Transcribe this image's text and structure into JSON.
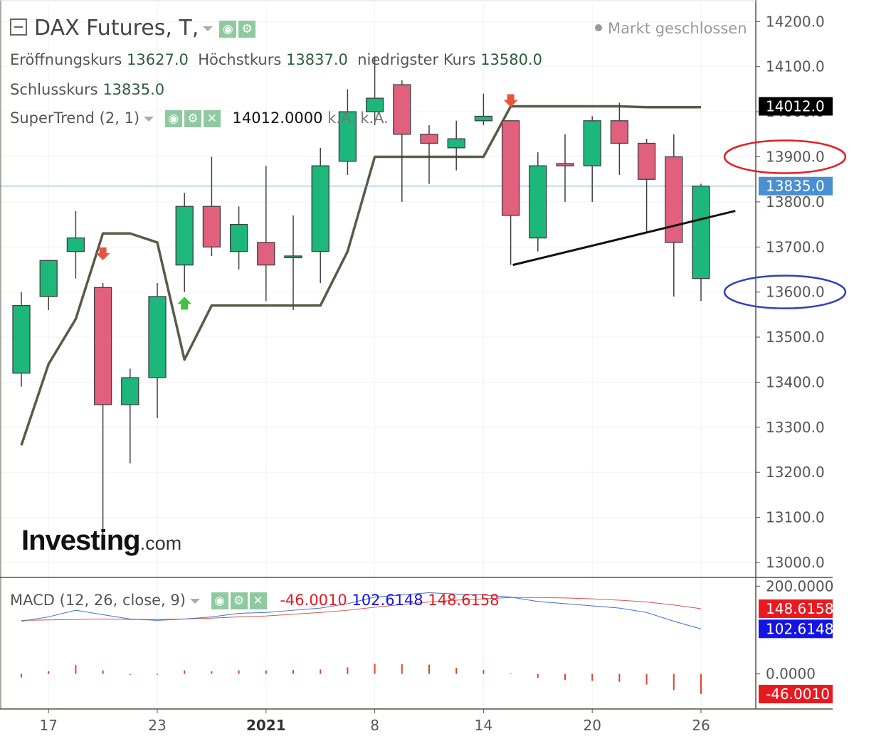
{
  "header": {
    "instrument": "DAX Futures, T,",
    "status": "Markt geschlossen",
    "ohlc": [
      {
        "label": "Eröffnungskurs",
        "value": "13627.0"
      },
      {
        "label": "Höchstkurs",
        "value": "13837.0"
      },
      {
        "label": "niedrigster Kurs",
        "value": "13580.0"
      }
    ],
    "close": {
      "label": "Schlusskurs",
      "value": "13835.0"
    },
    "indicator": {
      "name": "SuperTrend (2, 1)",
      "value": "14012.0000",
      "extra1": "k.A.",
      "extra2": "k.A."
    },
    "macd": {
      "name": "MACD (12, 26, close, 9)",
      "hist": "-46.0010",
      "macd": "102.6148",
      "signal": "148.6158"
    }
  },
  "logo": {
    "main": "Investing",
    "suffix": ".com"
  },
  "colors": {
    "up": "#1db77b",
    "down": "#e0607e",
    "outline": "#3f3f3f",
    "supertrend": "#5a5a47",
    "macd_line": "#3d6fd6",
    "signal_line": "#d9534f",
    "hist": "#e0442e"
  },
  "chart_data": [
    {
      "type": "candlestick",
      "y_ticks": [
        "14200.0",
        "14100.0",
        "14000.0",
        "13900.0",
        "13800.0",
        "13700.0",
        "13600.0",
        "13500.0",
        "13400.0",
        "13300.0",
        "13200.0",
        "13100.0",
        "13000.0"
      ],
      "ylim": [
        12970,
        14240
      ],
      "x_ticks": [
        {
          "index": 1,
          "label": "17"
        },
        {
          "index": 5,
          "label": "23"
        },
        {
          "index": 9,
          "label": "2021"
        },
        {
          "index": 13,
          "label": "8"
        },
        {
          "index": 17,
          "label": "14"
        },
        {
          "index": 21,
          "label": "20"
        },
        {
          "index": 25,
          "label": "26"
        }
      ],
      "candles": [
        {
          "open": 13420,
          "high": 13600,
          "low": 13390,
          "close": 13570
        },
        {
          "open": 13590,
          "high": 13660,
          "low": 13560,
          "close": 13670
        },
        {
          "open": 13690,
          "high": 13780,
          "low": 13630,
          "close": 13720
        },
        {
          "open": 13610,
          "high": 13620,
          "low": 13060,
          "close": 13350
        },
        {
          "open": 13350,
          "high": 13430,
          "low": 13220,
          "close": 13410
        },
        {
          "open": 13410,
          "high": 13620,
          "low": 13320,
          "close": 13590
        },
        {
          "open": 13660,
          "high": 13820,
          "low": 13600,
          "close": 13790
        },
        {
          "open": 13790,
          "high": 13900,
          "low": 13680,
          "close": 13700
        },
        {
          "open": 13690,
          "high": 13790,
          "low": 13650,
          "close": 13750
        },
        {
          "open": 13710,
          "high": 13880,
          "low": 13580,
          "close": 13660
        },
        {
          "open": 13680,
          "high": 13770,
          "low": 13560,
          "close": 13680
        },
        {
          "open": 13690,
          "high": 13920,
          "low": 13620,
          "close": 13880
        },
        {
          "open": 13890,
          "high": 14050,
          "low": 13860,
          "close": 14000
        },
        {
          "open": 14000,
          "high": 14120,
          "low": 13970,
          "close": 14030
        },
        {
          "open": 14060,
          "high": 14070,
          "low": 13800,
          "close": 13950
        },
        {
          "open": 13950,
          "high": 13970,
          "low": 13840,
          "close": 13930
        },
        {
          "open": 13920,
          "high": 13980,
          "low": 13870,
          "close": 13940
        },
        {
          "open": 13980,
          "high": 14040,
          "low": 13970,
          "close": 13990
        },
        {
          "open": 13980,
          "high": 13980,
          "low": 13660,
          "close": 13770
        },
        {
          "open": 13720,
          "high": 13910,
          "low": 13690,
          "close": 13880
        },
        {
          "open": 13885,
          "high": 13950,
          "low": 13800,
          "close": 13880
        },
        {
          "open": 13880,
          "high": 13990,
          "low": 13800,
          "close": 13980
        },
        {
          "open": 13980,
          "high": 14020,
          "low": 13860,
          "close": 13930
        },
        {
          "open": 13930,
          "high": 13940,
          "low": 13730,
          "close": 13850
        },
        {
          "open": 13900,
          "high": 13950,
          "low": 13590,
          "close": 13710
        },
        {
          "open": 13630,
          "high": 13840,
          "low": 13580,
          "close": 13835
        }
      ],
      "supertrend": [
        13260,
        13440,
        13540,
        13730,
        13730,
        13710,
        13450,
        13570,
        13570,
        13570,
        13570,
        13570,
        13690,
        13900,
        13900,
        13900,
        13900,
        13900,
        14012,
        14012,
        14012,
        14012,
        14012,
        14010,
        14010,
        14010
      ],
      "signals": [
        {
          "index": 3,
          "type": "sell",
          "price": 13680
        },
        {
          "index": 6,
          "type": "buy",
          "price": 13580
        },
        {
          "index": 18,
          "type": "sell",
          "price": 14020
        }
      ],
      "trendline": {
        "start": {
          "index": 18,
          "price": 13660
        },
        "end": {
          "index": 26,
          "price": 13780
        }
      },
      "last_price": {
        "label": "13835.0",
        "value": 13835
      },
      "st_price": {
        "label": "14012.0",
        "value": 14012
      },
      "highlights": [
        {
          "price": 13900,
          "color": "#e02020"
        },
        {
          "price": 13600,
          "color": "#3040c0"
        }
      ]
    },
    {
      "type": "line",
      "name": "MACD (12, 26, close, 9)",
      "y_ticks": [
        {
          "label": "200.0000",
          "value": 200
        },
        {
          "label": "0.0000",
          "value": 0
        }
      ],
      "ylim": [
        -80,
        215
      ],
      "macd": [
        120,
        130,
        145,
        135,
        125,
        122,
        125,
        130,
        138,
        140,
        145,
        150,
        160,
        175,
        180,
        185,
        182,
        180,
        175,
        165,
        160,
        155,
        150,
        140,
        120,
        102.6148
      ],
      "signal": [
        122,
        123,
        124,
        125,
        124,
        124,
        125,
        127,
        130,
        132,
        136,
        140,
        145,
        152,
        158,
        164,
        168,
        171,
        174,
        174,
        173,
        171,
        168,
        164,
        157,
        148.6158
      ],
      "histogram": [
        -8,
        6,
        20,
        8,
        -2,
        -2,
        8,
        6,
        8,
        8,
        9,
        10,
        15,
        23,
        22,
        21,
        14,
        9,
        1,
        -9,
        -14,
        -16,
        -18,
        -24,
        -37,
        -46.001
      ],
      "labels": [
        {
          "text": "148.6158",
          "value": 148.6158,
          "color": "#e8191f"
        },
        {
          "text": "102.6148",
          "value": 102.6148,
          "color": "#1414e6"
        },
        {
          "text": "-46.0010",
          "value": -46.001,
          "color": "#e8191f"
        }
      ]
    }
  ]
}
